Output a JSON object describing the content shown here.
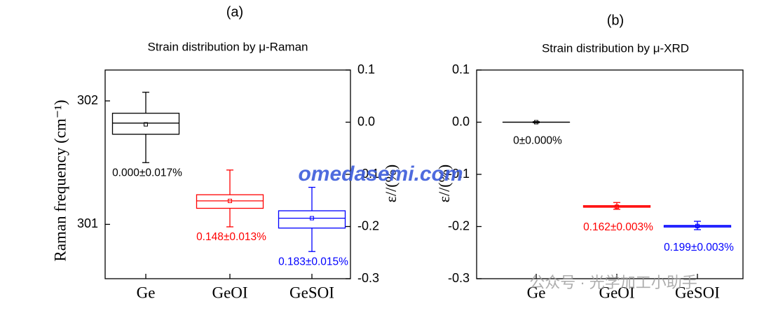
{
  "chart_data": [
    {
      "type": "box",
      "panel_label": "(a)",
      "title": "Strain distribution by μ-Raman",
      "ylabel": "Raman frequency (cm⁻¹)",
      "y2label": "ε//(%)",
      "categories": [
        "Ge",
        "GeOI",
        "GeSOI"
      ],
      "ylim": [
        300.56,
        302.25
      ],
      "yticks": [
        301,
        302
      ],
      "y2lim": [
        -0.3,
        0.1
      ],
      "y2ticks": [
        0.1,
        {
          "value": 0,
          "label": "0.0"
        },
        -0.1,
        -0.2,
        -0.3
      ],
      "boxes": [
        {
          "color": "#000000",
          "whislo": 301.5,
          "q1": 301.73,
          "med": 301.82,
          "mean": 301.81,
          "q3": 301.9,
          "whishi": 302.07,
          "label": "0.000±0.017%"
        },
        {
          "color": "#ff0000",
          "whislo": 300.98,
          "q1": 301.13,
          "med": 301.19,
          "mean": 301.19,
          "q3": 301.24,
          "whishi": 301.44,
          "label": "0.148±0.013%"
        },
        {
          "color": "#0000ff",
          "whislo": 300.78,
          "q1": 300.97,
          "med": 301.05,
          "mean": 301.05,
          "q3": 301.11,
          "whishi": 301.3,
          "label": "0.183±0.015%"
        }
      ]
    },
    {
      "type": "box",
      "panel_label": "(b)",
      "title": "Strain distribution by μ-XRD",
      "ylabel": "ε//(%)",
      "categories": [
        "Ge",
        "GeOI",
        "GeSOI"
      ],
      "ylim": [
        -0.3,
        0.1
      ],
      "yticks": [
        0.1,
        {
          "value": 0,
          "label": "0.0"
        },
        -0.1,
        -0.2,
        -0.3
      ],
      "boxes": [
        {
          "color": "#000000",
          "whislo": -0.001,
          "q1": 0,
          "med": 0,
          "mean": 0,
          "q3": 0,
          "whishi": 0.001,
          "label": "0±0.000%"
        },
        {
          "color": "#ff0000",
          "whislo": -0.167,
          "q1": -0.163,
          "med": -0.162,
          "mean": -0.162,
          "q3": -0.16,
          "whishi": -0.154,
          "label": "0.162±0.003%"
        },
        {
          "color": "#0000ff",
          "whislo": -0.206,
          "q1": -0.201,
          "med": -0.199,
          "mean": -0.199,
          "q3": -0.198,
          "whishi": -0.19,
          "label": "0.199±0.003%"
        }
      ]
    }
  ],
  "watermarks": [
    "omedasemi.com",
    "公众号 · 光学加工小助手"
  ]
}
